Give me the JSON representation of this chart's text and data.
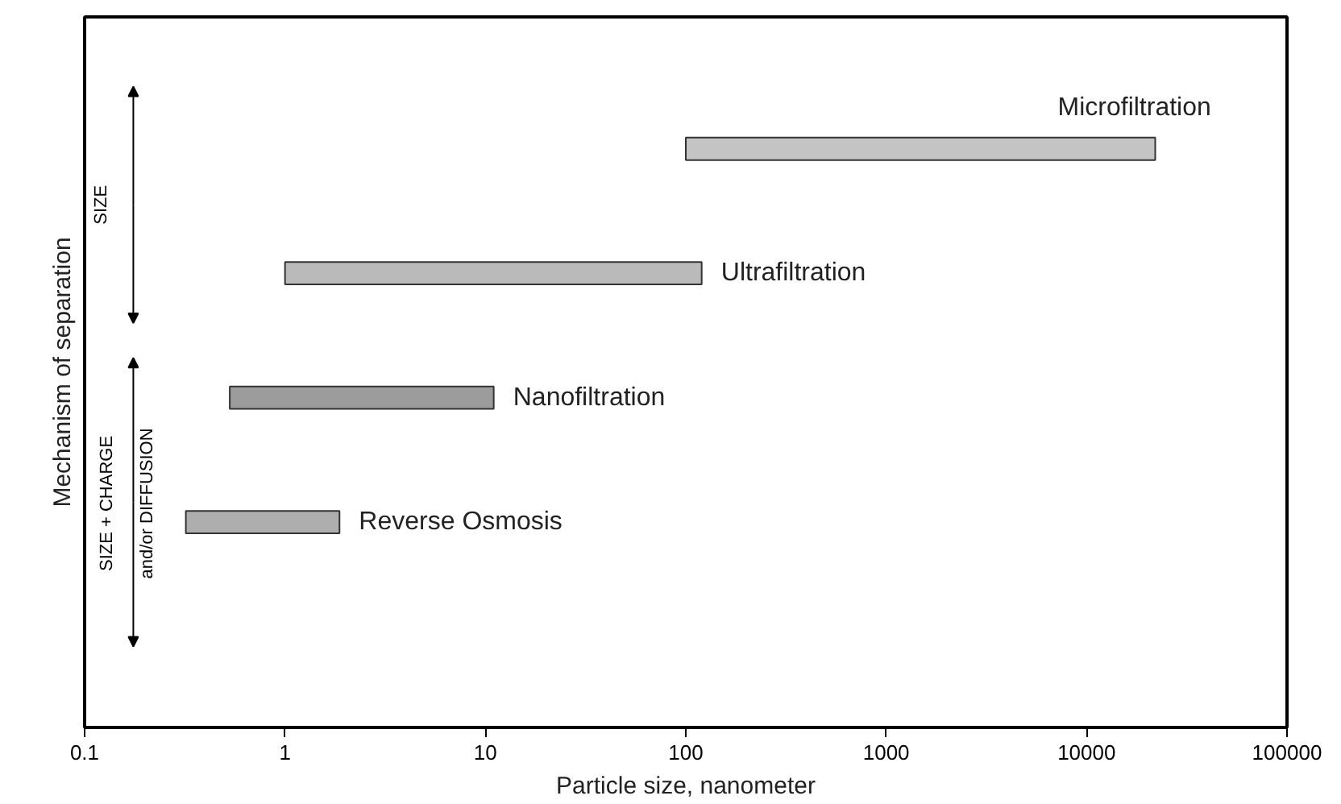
{
  "chart_data": {
    "type": "bar",
    "orientation": "horizontal",
    "xlabel": "Particle size, nanometer",
    "ylabel": "Mechanism of separation",
    "categories": [
      null,
      null,
      null,
      null
    ],
    "base": [
      100,
      1,
      0.53,
      0.32
    ],
    "values": [
      21900,
      119,
      10.47,
      1.55
    ],
    "colors": [
      "#c4c4c4",
      "#bababa",
      "#9c9c9c",
      "#aeaeae"
    ],
    "log": "x",
    "xlim": [
      0.1,
      100000
    ],
    "xticks": [
      0.1,
      1,
      10,
      100,
      1000,
      10000,
      100000
    ],
    "tick_labels": "x",
    "grid": false,
    "annotations": [
      "Microfiltration",
      {
        "text": "Ultrafiltration",
        "x": 120
      },
      {
        "text": "Nanofiltration",
        "x": 11
      },
      {
        "text": "Reverse Osmosis",
        "x": 1.87
      },
      "SIZE",
      "SIZE + CHARGE",
      "and/or DIFFUSION"
    ]
  }
}
